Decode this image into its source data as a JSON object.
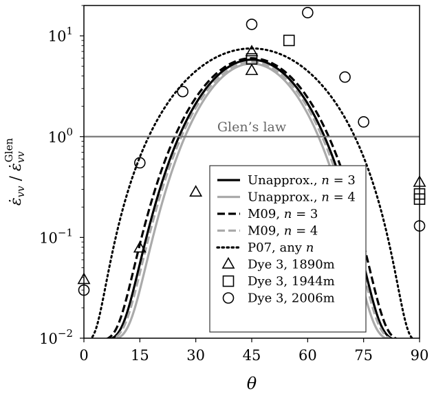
{
  "chart_data": {
    "type": "line",
    "xlabel": "θ",
    "ylabel_main": "ε̇",
    "ylabel_sub": "vv",
    "ylabel_den": "ε̇",
    "ylabel_den_sub": "vv",
    "ylabel_den_sup": "Glen",
    "xlim": [
      0,
      90
    ],
    "ylim": [
      0.01,
      20
    ],
    "yscale": "log",
    "x_ticks": [
      0,
      15,
      30,
      45,
      60,
      75,
      90
    ],
    "x_tick_labels": [
      "0",
      "15",
      "30",
      "45",
      "60",
      "75",
      "90"
    ],
    "y_ticks": [
      0.01,
      0.1,
      1,
      10
    ],
    "y_tick_labels": [
      {
        "base": "10",
        "exp": "−2"
      },
      {
        "base": "10",
        "exp": "−1"
      },
      {
        "base": "10",
        "exp": "0"
      },
      {
        "base": "10",
        "exp": "1"
      }
    ],
    "reference_line": {
      "y": 1.0,
      "label": "Glen’s law",
      "color": "#777777"
    },
    "series": [
      {
        "name": "Unapprox., n = 3",
        "label_prefix": "Unapprox., ",
        "label_var": "n",
        "label_suffix": " = 3",
        "style": "solid",
        "color": "#000000",
        "peak": 5.8,
        "shape": 7.0
      },
      {
        "name": "Unapprox., n = 4",
        "label_prefix": "Unapprox., ",
        "label_var": "n",
        "label_suffix": " = 4",
        "style": "solid",
        "color": "#aaaaaa",
        "peak": 5.3,
        "shape": 8.0
      },
      {
        "name": "M09, n = 3",
        "label_prefix": "M09, ",
        "label_var": "n",
        "label_suffix": " = 3",
        "style": "dashed",
        "color": "#000000",
        "peak": 6.0,
        "shape": 6.3
      },
      {
        "name": "M09, n = 4",
        "label_prefix": "M09, ",
        "label_var": "n",
        "label_suffix": " = 4",
        "style": "dashed",
        "color": "#aaaaaa",
        "peak": 5.5,
        "shape": 7.3
      },
      {
        "name": "P07, any n",
        "label_prefix": "P07, any ",
        "label_var": "n",
        "label_suffix": "",
        "style": "dotted",
        "color": "#000000",
        "peak": 7.5,
        "shape": 3.6
      }
    ],
    "observations": [
      {
        "name": "Dye 3, 1890m",
        "marker": "triangle",
        "points": [
          {
            "x": 0,
            "y": 0.038
          },
          {
            "x": 15,
            "y": 0.078
          },
          {
            "x": 30,
            "y": 0.28
          },
          {
            "x": 45,
            "y": 6.9
          },
          {
            "x": 45,
            "y": 4.5
          },
          {
            "x": 90,
            "y": 0.35
          }
        ]
      },
      {
        "name": "Dye 3, 1944m",
        "marker": "square",
        "points": [
          {
            "x": 45,
            "y": 5.9
          },
          {
            "x": 55,
            "y": 9.0
          },
          {
            "x": 90,
            "y": 0.27
          },
          {
            "x": 90,
            "y": 0.24
          }
        ]
      },
      {
        "name": "Dye 3, 2006m",
        "marker": "circle",
        "points": [
          {
            "x": 0,
            "y": 0.03
          },
          {
            "x": 15,
            "y": 0.55
          },
          {
            "x": 26.5,
            "y": 2.8
          },
          {
            "x": 45,
            "y": 13.0
          },
          {
            "x": 60,
            "y": 17.0
          },
          {
            "x": 70,
            "y": 3.9
          },
          {
            "x": 75,
            "y": 1.4
          },
          {
            "x": 90,
            "y": 0.13
          }
        ]
      }
    ],
    "grid": false,
    "legend_position": "lower-right"
  }
}
